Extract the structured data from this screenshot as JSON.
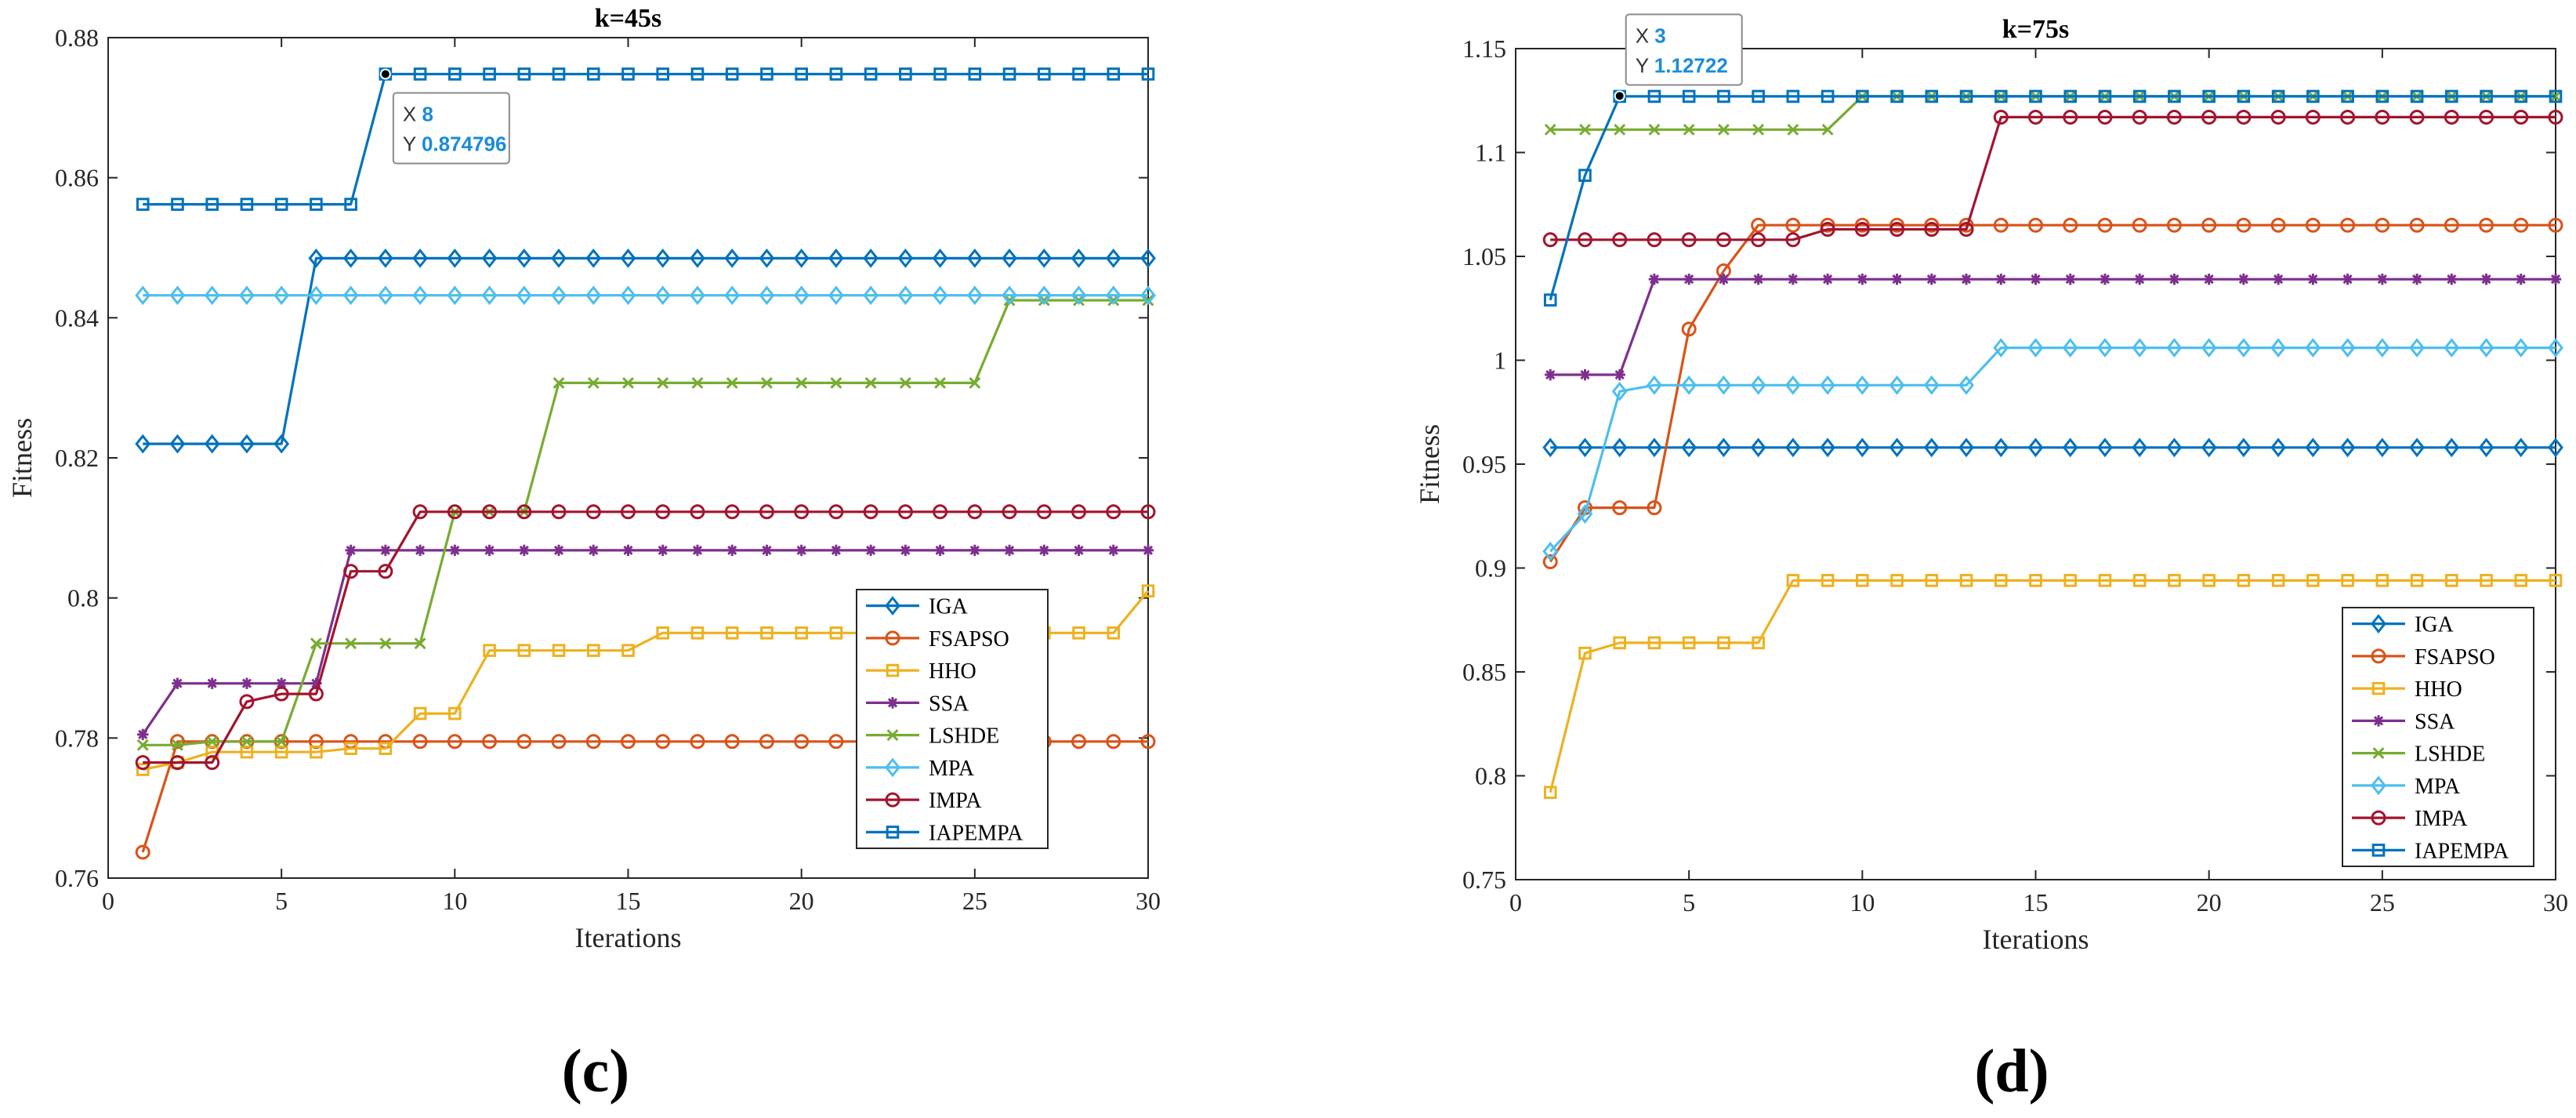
{
  "colors": {
    "IGA": "#0072BD",
    "FSAPSO": "#D95319",
    "HHO": "#EDB120",
    "SSA": "#7E2F8E",
    "LSHDE": "#77AC30",
    "MPA": "#4DBEEE",
    "IMPA": "#A2142F",
    "IAPEMPA": "#0072BD"
  },
  "markers": {
    "IGA": "diamond",
    "FSAPSO": "circle",
    "HHO": "square",
    "SSA": "star",
    "LSHDE": "x",
    "MPA": "diamond",
    "IMPA": "circle",
    "IAPEMPA": "square"
  },
  "chart_data": [
    {
      "type": "line",
      "panel_label": "(c)",
      "title": "k=45s",
      "xlabel": "Iterations",
      "ylabel": "Fitness",
      "xlim": [
        0,
        30
      ],
      "ylim": [
        0.76,
        0.88
      ],
      "xticks": [
        0,
        5,
        10,
        15,
        20,
        25,
        30
      ],
      "xtick_labels": [
        "0",
        "5",
        "10",
        "15",
        "20",
        "25",
        "30"
      ],
      "yticks": [
        0.76,
        0.78,
        0.8,
        0.82,
        0.84,
        0.86,
        0.88
      ],
      "ytick_labels": [
        "0.76",
        "0.78",
        "0.8",
        "0.82",
        "0.84",
        "0.86",
        "0.88"
      ],
      "legend_position": "lower-right",
      "x": [
        1,
        2,
        3,
        4,
        5,
        6,
        7,
        8,
        9,
        10,
        11,
        12,
        13,
        14,
        15,
        16,
        17,
        18,
        19,
        20,
        21,
        22,
        23,
        24,
        25,
        26,
        27,
        28,
        29,
        30
      ],
      "series": [
        {
          "name": "IGA",
          "values": [
            0.822,
            0.822,
            0.822,
            0.822,
            0.822,
            0.8485,
            0.8485,
            0.8485,
            0.8485,
            0.8485,
            0.8485,
            0.8485,
            0.8485,
            0.8485,
            0.8485,
            0.8485,
            0.8485,
            0.8485,
            0.8485,
            0.8485,
            0.8485,
            0.8485,
            0.8485,
            0.8485,
            0.8485,
            0.8485,
            0.8485,
            0.8485,
            0.8485,
            0.8485
          ]
        },
        {
          "name": "FSAPSO",
          "values": [
            0.7637,
            0.7795,
            0.7795,
            0.7795,
            0.7795,
            0.7795,
            0.7795,
            0.7795,
            0.7795,
            0.7795,
            0.7795,
            0.7795,
            0.7795,
            0.7795,
            0.7795,
            0.7795,
            0.7795,
            0.7795,
            0.7795,
            0.7795,
            0.7795,
            0.7795,
            0.7795,
            0.7795,
            0.7795,
            0.7795,
            0.7795,
            0.7795,
            0.7795,
            0.7795
          ]
        },
        {
          "name": "HHO",
          "values": [
            0.7755,
            0.7765,
            0.778,
            0.778,
            0.778,
            0.778,
            0.7785,
            0.7785,
            0.7835,
            0.7835,
            0.7925,
            0.7925,
            0.7925,
            0.7925,
            0.7925,
            0.795,
            0.795,
            0.795,
            0.795,
            0.795,
            0.795,
            0.795,
            0.795,
            0.795,
            0.795,
            0.795,
            0.795,
            0.795,
            0.795,
            0.801
          ]
        },
        {
          "name": "SSA",
          "values": [
            0.7805,
            0.7878,
            0.7878,
            0.7878,
            0.7878,
            0.7878,
            0.8068,
            0.8068,
            0.8068,
            0.8068,
            0.8068,
            0.8068,
            0.8068,
            0.8068,
            0.8068,
            0.8068,
            0.8068,
            0.8068,
            0.8068,
            0.8068,
            0.8068,
            0.8068,
            0.8068,
            0.8068,
            0.8068,
            0.8068,
            0.8068,
            0.8068,
            0.8068,
            0.8068
          ]
        },
        {
          "name": "LSHDE",
          "values": [
            0.779,
            0.779,
            0.7795,
            0.7795,
            0.7795,
            0.7935,
            0.7935,
            0.7935,
            0.7935,
            0.8123,
            0.8123,
            0.8123,
            0.8307,
            0.8307,
            0.8307,
            0.8307,
            0.8307,
            0.8307,
            0.8307,
            0.8307,
            0.8307,
            0.8307,
            0.8307,
            0.8307,
            0.8307,
            0.8425,
            0.8425,
            0.8425,
            0.8425,
            0.8425
          ]
        },
        {
          "name": "MPA",
          "values": [
            0.8432,
            0.8432,
            0.8432,
            0.8432,
            0.8432,
            0.8432,
            0.8432,
            0.8432,
            0.8432,
            0.8432,
            0.8432,
            0.8432,
            0.8432,
            0.8432,
            0.8432,
            0.8432,
            0.8432,
            0.8432,
            0.8432,
            0.8432,
            0.8432,
            0.8432,
            0.8432,
            0.8432,
            0.8432,
            0.8432,
            0.8432,
            0.8432,
            0.8432,
            0.8432
          ]
        },
        {
          "name": "IMPA",
          "values": [
            0.7765,
            0.7765,
            0.7765,
            0.7852,
            0.7863,
            0.7863,
            0.8038,
            0.8038,
            0.8123,
            0.8123,
            0.8123,
            0.8123,
            0.8123,
            0.8123,
            0.8123,
            0.8123,
            0.8123,
            0.8123,
            0.8123,
            0.8123,
            0.8123,
            0.8123,
            0.8123,
            0.8123,
            0.8123,
            0.8123,
            0.8123,
            0.8123,
            0.8123,
            0.8123
          ]
        },
        {
          "name": "IAPEMPA",
          "values": [
            0.8562,
            0.8562,
            0.8562,
            0.8562,
            0.8562,
            0.8562,
            0.8562,
            0.8748,
            0.8748,
            0.8748,
            0.8748,
            0.8748,
            0.8748,
            0.8748,
            0.8748,
            0.8748,
            0.8748,
            0.8748,
            0.8748,
            0.8748,
            0.8748,
            0.8748,
            0.8748,
            0.8748,
            0.8748,
            0.8748,
            0.8748,
            0.8748,
            0.8748,
            0.8748
          ]
        }
      ],
      "datatip": {
        "x_label": "X",
        "x_value": "8",
        "y_label": "Y",
        "y_value": "0.874796",
        "x": 8,
        "y": 0.874796
      }
    },
    {
      "type": "line",
      "panel_label": "(d)",
      "title": "k=75s",
      "xlabel": "Iterations",
      "ylabel": "Fitness",
      "xlim": [
        0,
        30
      ],
      "ylim": [
        0.75,
        1.15
      ],
      "xticks": [
        0,
        5,
        10,
        15,
        20,
        25,
        30
      ],
      "xtick_labels": [
        "0",
        "5",
        "10",
        "15",
        "20",
        "25",
        "30"
      ],
      "yticks": [
        0.75,
        0.8,
        0.85,
        0.9,
        0.95,
        1.0,
        1.05,
        1.1,
        1.15
      ],
      "ytick_labels": [
        "0.75",
        "0.8",
        "0.85",
        "0.9",
        "0.95",
        "1",
        "1.05",
        "1.1",
        "1.15"
      ],
      "legend_position": "lower-right",
      "x": [
        1,
        2,
        3,
        4,
        5,
        6,
        7,
        8,
        9,
        10,
        11,
        12,
        13,
        14,
        15,
        16,
        17,
        18,
        19,
        20,
        21,
        22,
        23,
        24,
        25,
        26,
        27,
        28,
        29,
        30
      ],
      "series": [
        {
          "name": "IGA",
          "values": [
            0.958,
            0.958,
            0.958,
            0.958,
            0.958,
            0.958,
            0.958,
            0.958,
            0.958,
            0.958,
            0.958,
            0.958,
            0.958,
            0.958,
            0.958,
            0.958,
            0.958,
            0.958,
            0.958,
            0.958,
            0.958,
            0.958,
            0.958,
            0.958,
            0.958,
            0.958,
            0.958,
            0.958,
            0.958,
            0.958
          ]
        },
        {
          "name": "FSAPSO",
          "values": [
            0.903,
            0.929,
            0.929,
            0.929,
            1.015,
            1.043,
            1.065,
            1.065,
            1.065,
            1.065,
            1.065,
            1.065,
            1.065,
            1.065,
            1.065,
            1.065,
            1.065,
            1.065,
            1.065,
            1.065,
            1.065,
            1.065,
            1.065,
            1.065,
            1.065,
            1.065,
            1.065,
            1.065,
            1.065,
            1.065
          ]
        },
        {
          "name": "HHO",
          "values": [
            0.792,
            0.859,
            0.864,
            0.864,
            0.864,
            0.864,
            0.864,
            0.894,
            0.894,
            0.894,
            0.894,
            0.894,
            0.894,
            0.894,
            0.894,
            0.894,
            0.894,
            0.894,
            0.894,
            0.894,
            0.894,
            0.894,
            0.894,
            0.894,
            0.894,
            0.894,
            0.894,
            0.894,
            0.894,
            0.894
          ]
        },
        {
          "name": "SSA",
          "values": [
            0.993,
            0.993,
            0.993,
            1.039,
            1.039,
            1.039,
            1.039,
            1.039,
            1.039,
            1.039,
            1.039,
            1.039,
            1.039,
            1.039,
            1.039,
            1.039,
            1.039,
            1.039,
            1.039,
            1.039,
            1.039,
            1.039,
            1.039,
            1.039,
            1.039,
            1.039,
            1.039,
            1.039,
            1.039,
            1.039
          ]
        },
        {
          "name": "LSHDE",
          "values": [
            1.111,
            1.111,
            1.111,
            1.111,
            1.111,
            1.111,
            1.111,
            1.111,
            1.111,
            1.127,
            1.127,
            1.127,
            1.127,
            1.127,
            1.127,
            1.127,
            1.127,
            1.127,
            1.127,
            1.127,
            1.127,
            1.127,
            1.127,
            1.127,
            1.127,
            1.127,
            1.127,
            1.127,
            1.127,
            1.127
          ]
        },
        {
          "name": "MPA",
          "values": [
            0.908,
            0.926,
            0.985,
            0.988,
            0.988,
            0.988,
            0.988,
            0.988,
            0.988,
            0.988,
            0.988,
            0.988,
            0.988,
            1.006,
            1.006,
            1.006,
            1.006,
            1.006,
            1.006,
            1.006,
            1.006,
            1.006,
            1.006,
            1.006,
            1.006,
            1.006,
            1.006,
            1.006,
            1.006,
            1.006
          ]
        },
        {
          "name": "IMPA",
          "values": [
            1.058,
            1.058,
            1.058,
            1.058,
            1.058,
            1.058,
            1.058,
            1.058,
            1.063,
            1.063,
            1.063,
            1.063,
            1.063,
            1.117,
            1.117,
            1.117,
            1.117,
            1.117,
            1.117,
            1.117,
            1.117,
            1.117,
            1.117,
            1.117,
            1.117,
            1.117,
            1.117,
            1.117,
            1.117,
            1.117
          ]
        },
        {
          "name": "IAPEMPA",
          "values": [
            1.029,
            1.089,
            1.127,
            1.127,
            1.127,
            1.127,
            1.127,
            1.127,
            1.127,
            1.127,
            1.127,
            1.127,
            1.127,
            1.127,
            1.127,
            1.127,
            1.127,
            1.127,
            1.127,
            1.127,
            1.127,
            1.127,
            1.127,
            1.127,
            1.127,
            1.127,
            1.127,
            1.127,
            1.127,
            1.127
          ]
        }
      ],
      "datatip": {
        "x_label": "X",
        "x_value": "3",
        "y_label": "Y",
        "y_value": "1.12722",
        "x": 3,
        "y": 1.12722
      }
    }
  ]
}
